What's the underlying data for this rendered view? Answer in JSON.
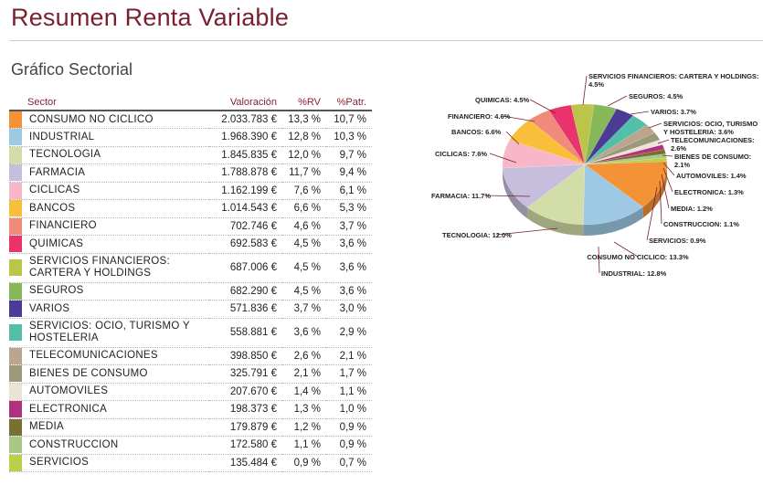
{
  "header": {
    "title": "Resumen Renta Variable",
    "subtitle": "Gráfico Sectorial"
  },
  "table": {
    "columns": [
      "Sector",
      "Valoración",
      "%RV",
      "%Patr."
    ],
    "rows": [
      {
        "sector": "CONSUMO NO CICLICO",
        "valoracion": "2.033.783 €",
        "rv": "13,3 %",
        "patr": "10,7 %",
        "color": "#f39237"
      },
      {
        "sector": "INDUSTRIAL",
        "valoracion": "1.968.390 €",
        "rv": "12,8 %",
        "patr": "10,3 %",
        "color": "#9ec9e4"
      },
      {
        "sector": "TECNOLOGIA",
        "valoracion": "1.845.835 €",
        "rv": "12,0 %",
        "patr": "9,7 %",
        "color": "#d3dda8"
      },
      {
        "sector": "FARMACIA",
        "valoracion": "1.788.878 €",
        "rv": "11,7 %",
        "patr": "9,4 %",
        "color": "#c7bedd"
      },
      {
        "sector": "CICLICAS",
        "valoracion": "1.162.199 €",
        "rv": "7,6 %",
        "patr": "6,1 %",
        "color": "#f7b7c8"
      },
      {
        "sector": "BANCOS",
        "valoracion": "1.014.543 €",
        "rv": "6,6 %",
        "patr": "5,3 %",
        "color": "#f9bf3b"
      },
      {
        "sector": "FINANCIERO",
        "valoracion": "702.746 €",
        "rv": "4,6 %",
        "patr": "3,7 %",
        "color": "#f08a7a"
      },
      {
        "sector": "QUIMICAS",
        "valoracion": "692.583 €",
        "rv": "4,5 %",
        "patr": "3,6 %",
        "color": "#e8336d"
      },
      {
        "sector": "SERVICIOS FINANCIEROS: CARTERA Y HOLDINGS",
        "valoracion": "687.006 €",
        "rv": "4,5 %",
        "patr": "3,6 %",
        "color": "#bcc44a"
      },
      {
        "sector": "SEGUROS",
        "valoracion": "682.290 €",
        "rv": "4,5 %",
        "patr": "3,6 %",
        "color": "#86b85a"
      },
      {
        "sector": "VARIOS",
        "valoracion": "571.836 €",
        "rv": "3,7 %",
        "patr": "3,0 %",
        "color": "#4b3b94"
      },
      {
        "sector": "SERVICIOS: OCIO, TURISMO Y HOSTELERIA",
        "valoracion": "558.881 €",
        "rv": "3,6 %",
        "patr": "2,9 %",
        "color": "#53bfa8"
      },
      {
        "sector": "TELECOMUNICACIONES",
        "valoracion": "398.850 €",
        "rv": "2,6 %",
        "patr": "2,1 %",
        "color": "#bca58e"
      },
      {
        "sector": "BIENES DE CONSUMO",
        "valoracion": "325.791 €",
        "rv": "2,1 %",
        "patr": "1,7 %",
        "color": "#9a9a7a"
      },
      {
        "sector": "AUTOMOVILES",
        "valoracion": "207.670 €",
        "rv": "1,4 %",
        "patr": "1,1 %",
        "color": "#ece2d6"
      },
      {
        "sector": "ELECTRONICA",
        "valoracion": "198.373 €",
        "rv": "1,3 %",
        "patr": "1,0 %",
        "color": "#b2317e"
      },
      {
        "sector": "MEDIA",
        "valoracion": "179.879 €",
        "rv": "1,2 %",
        "patr": "0,9 %",
        "color": "#777032"
      },
      {
        "sector": "CONSTRUCCION",
        "valoracion": "172.580 €",
        "rv": "1,1 %",
        "patr": "0,9 %",
        "color": "#a9c785"
      },
      {
        "sector": "SERVICIOS",
        "valoracion": "135.484 €",
        "rv": "0,9 %",
        "patr": "0,7 %",
        "color": "#b8d04a"
      }
    ]
  },
  "chart_data": {
    "type": "pie",
    "title": "",
    "categories": [
      "CONSUMO NO CICLICO",
      "INDUSTRIAL",
      "TECNOLOGIA",
      "FARMACIA",
      "CICLICAS",
      "BANCOS",
      "FINANCIERO",
      "QUIMICAS",
      "SERVICIOS FINANCIEROS: CARTERA Y HOLDINGS",
      "SEGUROS",
      "VARIOS",
      "SERVICIOS: OCIO, TURISMO Y HOSTELERIA",
      "TELECOMUNICACIONES",
      "BIENES DE CONSUMO",
      "AUTOMOVILES",
      "ELECTRONICA",
      "MEDIA",
      "CONSTRUCCION",
      "SERVICIOS"
    ],
    "values": [
      13.3,
      12.8,
      12.0,
      11.7,
      7.6,
      6.6,
      4.6,
      4.5,
      4.5,
      4.5,
      3.7,
      3.6,
      2.6,
      2.1,
      1.4,
      1.3,
      1.2,
      1.1,
      0.9
    ],
    "labels": [
      "CONSUMO NO CICLICO: 13.3%",
      "INDUSTRIAL: 12.8%",
      "TECNOLOGIA: 12.0%",
      "FARMACIA: 11.7%",
      "CICLICAS: 7.6%",
      "BANCOS: 6.6%",
      "FINANCIERO: 4.6%",
      "QUIMICAS: 4.5%",
      "SERVICIOS FINANCIEROS: CARTERA Y HOLDINGS: 4.5%",
      "SEGUROS: 4.5%",
      "VARIOS: 3.7%",
      "SERVICIOS: OCIO, TURISMO Y HOSTELERIA: 3.6%",
      "TELECOMUNICACIONES: 2.6%",
      "BIENES DE CONSUMO: 2.1%",
      "AUTOMOVILES: 1.4%",
      "ELECTRONICA: 1.3%",
      "MEDIA: 1.2%",
      "CONSTRUCCION: 1.1%",
      "SERVICIOS: 0.9%"
    ],
    "colors": [
      "#f39237",
      "#9ec9e4",
      "#d3dda8",
      "#c7bedd",
      "#f7b7c8",
      "#f9bf3b",
      "#f08a7a",
      "#e8336d",
      "#bcc44a",
      "#86b85a",
      "#4b3b94",
      "#53bfa8",
      "#bca58e",
      "#9a9a7a",
      "#ece2d6",
      "#b2317e",
      "#777032",
      "#a9c785",
      "#b8d04a"
    ],
    "legend": "none",
    "style": "3d"
  }
}
